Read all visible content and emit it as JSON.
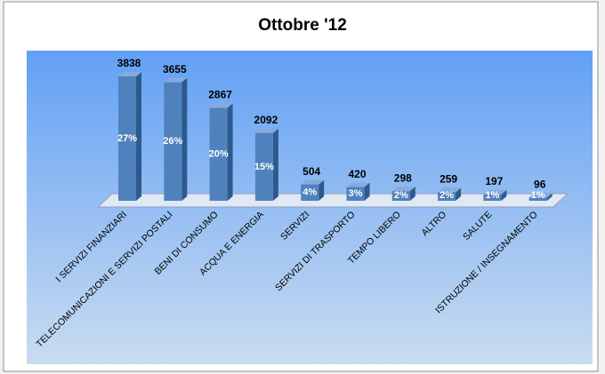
{
  "chart_data": {
    "type": "bar3d",
    "title": "Ottobre '12",
    "categories": [
      "I SERVIZI FINANZIARI",
      "TELECOMUNICAZIONI E SERVIZI POSTALI",
      "BENI DI CONSUMO",
      "ACQUA E ENERGIA",
      "SERVIZI",
      "SERVIZI DI TRASPORTO",
      "TEMPO LIBERO",
      "ALTRO",
      "SALUTE",
      "ISTRUZIONE / INSEGNAMENTO"
    ],
    "values": [
      3838,
      3655,
      2867,
      2092,
      504,
      420,
      298,
      259,
      197,
      96
    ],
    "percent_labels": [
      "27%",
      "26%",
      "20%",
      "15%",
      "4%",
      "3%",
      "2%",
      "2%",
      "1%",
      "1%"
    ],
    "color": "#4f81bd"
  }
}
